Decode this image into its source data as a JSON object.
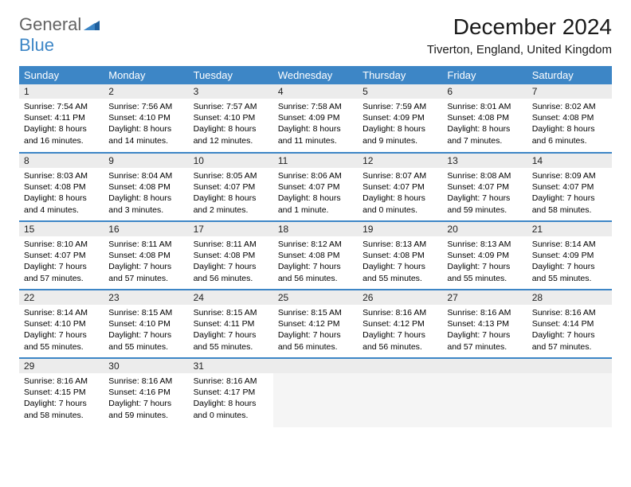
{
  "brand": {
    "general": "General",
    "blue": "Blue"
  },
  "title": "December 2024",
  "location": "Tiverton, England, United Kingdom",
  "colors": {
    "header_bg": "#3d86c6",
    "daynum_bg": "#ececec",
    "border": "#3d86c6",
    "empty_bg": "#f5f5f5"
  },
  "dayHeaders": [
    "Sunday",
    "Monday",
    "Tuesday",
    "Wednesday",
    "Thursday",
    "Friday",
    "Saturday"
  ],
  "weeks": [
    [
      {
        "n": "1",
        "sr": "Sunrise: 7:54 AM",
        "ss": "Sunset: 4:11 PM",
        "d1": "Daylight: 8 hours",
        "d2": "and 16 minutes."
      },
      {
        "n": "2",
        "sr": "Sunrise: 7:56 AM",
        "ss": "Sunset: 4:10 PM",
        "d1": "Daylight: 8 hours",
        "d2": "and 14 minutes."
      },
      {
        "n": "3",
        "sr": "Sunrise: 7:57 AM",
        "ss": "Sunset: 4:10 PM",
        "d1": "Daylight: 8 hours",
        "d2": "and 12 minutes."
      },
      {
        "n": "4",
        "sr": "Sunrise: 7:58 AM",
        "ss": "Sunset: 4:09 PM",
        "d1": "Daylight: 8 hours",
        "d2": "and 11 minutes."
      },
      {
        "n": "5",
        "sr": "Sunrise: 7:59 AM",
        "ss": "Sunset: 4:09 PM",
        "d1": "Daylight: 8 hours",
        "d2": "and 9 minutes."
      },
      {
        "n": "6",
        "sr": "Sunrise: 8:01 AM",
        "ss": "Sunset: 4:08 PM",
        "d1": "Daylight: 8 hours",
        "d2": "and 7 minutes."
      },
      {
        "n": "7",
        "sr": "Sunrise: 8:02 AM",
        "ss": "Sunset: 4:08 PM",
        "d1": "Daylight: 8 hours",
        "d2": "and 6 minutes."
      }
    ],
    [
      {
        "n": "8",
        "sr": "Sunrise: 8:03 AM",
        "ss": "Sunset: 4:08 PM",
        "d1": "Daylight: 8 hours",
        "d2": "and 4 minutes."
      },
      {
        "n": "9",
        "sr": "Sunrise: 8:04 AM",
        "ss": "Sunset: 4:08 PM",
        "d1": "Daylight: 8 hours",
        "d2": "and 3 minutes."
      },
      {
        "n": "10",
        "sr": "Sunrise: 8:05 AM",
        "ss": "Sunset: 4:07 PM",
        "d1": "Daylight: 8 hours",
        "d2": "and 2 minutes."
      },
      {
        "n": "11",
        "sr": "Sunrise: 8:06 AM",
        "ss": "Sunset: 4:07 PM",
        "d1": "Daylight: 8 hours",
        "d2": "and 1 minute."
      },
      {
        "n": "12",
        "sr": "Sunrise: 8:07 AM",
        "ss": "Sunset: 4:07 PM",
        "d1": "Daylight: 8 hours",
        "d2": "and 0 minutes."
      },
      {
        "n": "13",
        "sr": "Sunrise: 8:08 AM",
        "ss": "Sunset: 4:07 PM",
        "d1": "Daylight: 7 hours",
        "d2": "and 59 minutes."
      },
      {
        "n": "14",
        "sr": "Sunrise: 8:09 AM",
        "ss": "Sunset: 4:07 PM",
        "d1": "Daylight: 7 hours",
        "d2": "and 58 minutes."
      }
    ],
    [
      {
        "n": "15",
        "sr": "Sunrise: 8:10 AM",
        "ss": "Sunset: 4:07 PM",
        "d1": "Daylight: 7 hours",
        "d2": "and 57 minutes."
      },
      {
        "n": "16",
        "sr": "Sunrise: 8:11 AM",
        "ss": "Sunset: 4:08 PM",
        "d1": "Daylight: 7 hours",
        "d2": "and 57 minutes."
      },
      {
        "n": "17",
        "sr": "Sunrise: 8:11 AM",
        "ss": "Sunset: 4:08 PM",
        "d1": "Daylight: 7 hours",
        "d2": "and 56 minutes."
      },
      {
        "n": "18",
        "sr": "Sunrise: 8:12 AM",
        "ss": "Sunset: 4:08 PM",
        "d1": "Daylight: 7 hours",
        "d2": "and 56 minutes."
      },
      {
        "n": "19",
        "sr": "Sunrise: 8:13 AM",
        "ss": "Sunset: 4:08 PM",
        "d1": "Daylight: 7 hours",
        "d2": "and 55 minutes."
      },
      {
        "n": "20",
        "sr": "Sunrise: 8:13 AM",
        "ss": "Sunset: 4:09 PM",
        "d1": "Daylight: 7 hours",
        "d2": "and 55 minutes."
      },
      {
        "n": "21",
        "sr": "Sunrise: 8:14 AM",
        "ss": "Sunset: 4:09 PM",
        "d1": "Daylight: 7 hours",
        "d2": "and 55 minutes."
      }
    ],
    [
      {
        "n": "22",
        "sr": "Sunrise: 8:14 AM",
        "ss": "Sunset: 4:10 PM",
        "d1": "Daylight: 7 hours",
        "d2": "and 55 minutes."
      },
      {
        "n": "23",
        "sr": "Sunrise: 8:15 AM",
        "ss": "Sunset: 4:10 PM",
        "d1": "Daylight: 7 hours",
        "d2": "and 55 minutes."
      },
      {
        "n": "24",
        "sr": "Sunrise: 8:15 AM",
        "ss": "Sunset: 4:11 PM",
        "d1": "Daylight: 7 hours",
        "d2": "and 55 minutes."
      },
      {
        "n": "25",
        "sr": "Sunrise: 8:15 AM",
        "ss": "Sunset: 4:12 PM",
        "d1": "Daylight: 7 hours",
        "d2": "and 56 minutes."
      },
      {
        "n": "26",
        "sr": "Sunrise: 8:16 AM",
        "ss": "Sunset: 4:12 PM",
        "d1": "Daylight: 7 hours",
        "d2": "and 56 minutes."
      },
      {
        "n": "27",
        "sr": "Sunrise: 8:16 AM",
        "ss": "Sunset: 4:13 PM",
        "d1": "Daylight: 7 hours",
        "d2": "and 57 minutes."
      },
      {
        "n": "28",
        "sr": "Sunrise: 8:16 AM",
        "ss": "Sunset: 4:14 PM",
        "d1": "Daylight: 7 hours",
        "d2": "and 57 minutes."
      }
    ],
    [
      {
        "n": "29",
        "sr": "Sunrise: 8:16 AM",
        "ss": "Sunset: 4:15 PM",
        "d1": "Daylight: 7 hours",
        "d2": "and 58 minutes."
      },
      {
        "n": "30",
        "sr": "Sunrise: 8:16 AM",
        "ss": "Sunset: 4:16 PM",
        "d1": "Daylight: 7 hours",
        "d2": "and 59 minutes."
      },
      {
        "n": "31",
        "sr": "Sunrise: 8:16 AM",
        "ss": "Sunset: 4:17 PM",
        "d1": "Daylight: 8 hours",
        "d2": "and 0 minutes."
      },
      null,
      null,
      null,
      null
    ]
  ]
}
